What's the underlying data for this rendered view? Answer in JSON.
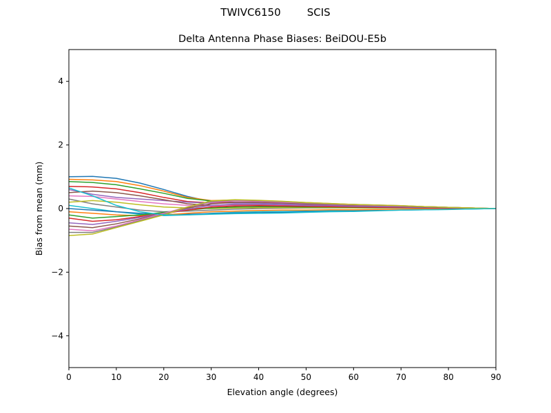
{
  "chart_data": {
    "type": "line",
    "suptitle": "TWIVC6150        SCIS",
    "title": "Delta Antenna Phase Biases: BeiDOU-E5b",
    "xlabel": "Elevation angle (degrees)",
    "ylabel": "Bias from mean (mm)",
    "xlim": [
      0,
      90
    ],
    "ylim": [
      -5,
      5
    ],
    "xticks": [
      0,
      10,
      20,
      30,
      40,
      50,
      60,
      70,
      80,
      90
    ],
    "yticks": [
      -4,
      -2,
      0,
      2,
      4
    ],
    "ytick_labels": [
      "−4",
      "−2",
      "0",
      "2",
      "4"
    ],
    "grid": false,
    "colors": [
      "#1f77b4",
      "#ff7f0e",
      "#2ca02c",
      "#d62728",
      "#9467bd",
      "#8c564b",
      "#e377c2",
      "#7f7f7f",
      "#bcbd22",
      "#17becf"
    ],
    "x": [
      0,
      5,
      10,
      15,
      20,
      25,
      30,
      35,
      40,
      45,
      50,
      55,
      60,
      65,
      70,
      75,
      80,
      85,
      90
    ],
    "series": [
      {
        "values": [
          1.0,
          1.01,
          0.95,
          0.8,
          0.6,
          0.38,
          0.22,
          0.2,
          0.18,
          0.16,
          0.15,
          0.13,
          0.11,
          0.09,
          0.07,
          0.05,
          0.03,
          0.01,
          0
        ]
      },
      {
        "values": [
          0.92,
          0.9,
          0.85,
          0.72,
          0.55,
          0.35,
          0.25,
          0.27,
          0.25,
          0.22,
          0.19,
          0.16,
          0.13,
          0.1,
          0.08,
          0.06,
          0.04,
          0.02,
          0
        ]
      },
      {
        "values": [
          0.85,
          0.82,
          0.75,
          0.62,
          0.48,
          0.32,
          0.24,
          0.26,
          0.25,
          0.21,
          0.18,
          0.15,
          0.12,
          0.1,
          0.08,
          0.06,
          0.04,
          0.02,
          0
        ]
      },
      {
        "values": [
          0.7,
          0.68,
          0.62,
          0.5,
          0.35,
          0.22,
          0.18,
          0.2,
          0.19,
          0.17,
          0.15,
          0.13,
          0.11,
          0.09,
          0.07,
          0.05,
          0.03,
          0.01,
          0
        ]
      },
      {
        "values": [
          0.6,
          0.45,
          0.35,
          0.3,
          0.25,
          0.2,
          0.17,
          0.18,
          0.17,
          0.15,
          0.13,
          0.11,
          0.1,
          0.08,
          0.06,
          0.05,
          0.03,
          0.01,
          0
        ]
      },
      {
        "values": [
          0.5,
          0.55,
          0.5,
          0.4,
          0.28,
          0.15,
          0.1,
          0.12,
          0.12,
          0.11,
          0.1,
          0.09,
          0.08,
          0.07,
          0.05,
          0.04,
          0.03,
          0.01,
          0
        ]
      },
      {
        "values": [
          0.4,
          0.38,
          0.3,
          0.22,
          0.15,
          0.1,
          0.08,
          0.1,
          0.1,
          0.09,
          0.08,
          0.07,
          0.06,
          0.05,
          0.04,
          0.03,
          0.02,
          0.01,
          0
        ]
      },
      {
        "values": [
          0.3,
          0.15,
          0.05,
          -0.05,
          -0.1,
          -0.08,
          -0.05,
          -0.02,
          0,
          0.01,
          0.02,
          0.02,
          0.02,
          0.02,
          0.01,
          0.01,
          0.01,
          0,
          0
        ]
      },
      {
        "values": [
          0.2,
          0.25,
          0.2,
          0.12,
          0.05,
          0.02,
          0.0,
          0.02,
          0.03,
          0.03,
          0.03,
          0.03,
          0.02,
          0.02,
          0.02,
          0.01,
          0.01,
          0,
          0
        ]
      },
      {
        "values": [
          0.1,
          0.0,
          -0.1,
          -0.18,
          -0.22,
          -0.2,
          -0.15,
          -0.12,
          -0.1,
          -0.09,
          -0.08,
          -0.07,
          -0.06,
          -0.05,
          -0.04,
          -0.03,
          -0.02,
          -0.01,
          0
        ]
      },
      {
        "values": [
          0.0,
          -0.05,
          -0.1,
          -0.15,
          -0.18,
          -0.18,
          -0.16,
          -0.14,
          -0.13,
          -0.12,
          -0.1,
          -0.09,
          -0.08,
          -0.06,
          -0.05,
          -0.04,
          -0.02,
          -0.01,
          0
        ]
      },
      {
        "values": [
          -0.1,
          -0.15,
          -0.2,
          -0.22,
          -0.2,
          -0.15,
          -0.1,
          -0.08,
          -0.06,
          -0.05,
          -0.05,
          -0.04,
          -0.04,
          -0.03,
          -0.03,
          -0.02,
          -0.01,
          0,
          0
        ]
      },
      {
        "values": [
          -0.2,
          -0.3,
          -0.25,
          -0.2,
          -0.12,
          -0.05,
          0.02,
          0.05,
          0.06,
          0.06,
          0.05,
          0.05,
          0.04,
          0.03,
          0.03,
          0.02,
          0.01,
          0,
          0
        ]
      },
      {
        "values": [
          -0.3,
          -0.4,
          -0.35,
          -0.25,
          -0.15,
          -0.05,
          0.05,
          0.08,
          0.09,
          0.08,
          0.07,
          0.06,
          0.05,
          0.04,
          0.03,
          0.02,
          0.01,
          0,
          0
        ]
      },
      {
        "values": [
          -0.45,
          -0.5,
          -0.4,
          -0.28,
          -0.15,
          -0.02,
          0.1,
          0.14,
          0.14,
          0.12,
          0.1,
          0.09,
          0.07,
          0.06,
          0.05,
          0.03,
          0.02,
          0.01,
          0
        ]
      },
      {
        "values": [
          -0.55,
          -0.6,
          -0.48,
          -0.32,
          -0.15,
          0.02,
          0.15,
          0.2,
          0.2,
          0.18,
          0.15,
          0.13,
          0.11,
          0.09,
          0.07,
          0.05,
          0.03,
          0.01,
          0
        ]
      },
      {
        "values": [
          -0.65,
          -0.7,
          -0.55,
          -0.35,
          -0.15,
          0.05,
          0.2,
          0.24,
          0.23,
          0.2,
          0.17,
          0.14,
          0.12,
          0.1,
          0.08,
          0.06,
          0.04,
          0.02,
          0
        ]
      },
      {
        "values": [
          -0.75,
          -0.75,
          -0.58,
          -0.38,
          -0.18,
          0.05,
          0.22,
          0.27,
          0.25,
          0.22,
          0.18,
          0.15,
          0.13,
          0.11,
          0.09,
          0.06,
          0.04,
          0.02,
          0
        ]
      },
      {
        "values": [
          -0.85,
          -0.8,
          -0.6,
          -0.4,
          -0.2,
          0.05,
          0.24,
          0.28,
          0.26,
          0.23,
          0.19,
          0.16,
          0.13,
          0.11,
          0.09,
          0.06,
          0.04,
          0.02,
          0
        ]
      },
      {
        "values": [
          0.65,
          0.4,
          0.1,
          -0.1,
          -0.2,
          -0.2,
          -0.18,
          -0.16,
          -0.15,
          -0.14,
          -0.12,
          -0.1,
          -0.09,
          -0.07,
          -0.05,
          -0.04,
          -0.03,
          -0.01,
          0
        ]
      }
    ]
  }
}
